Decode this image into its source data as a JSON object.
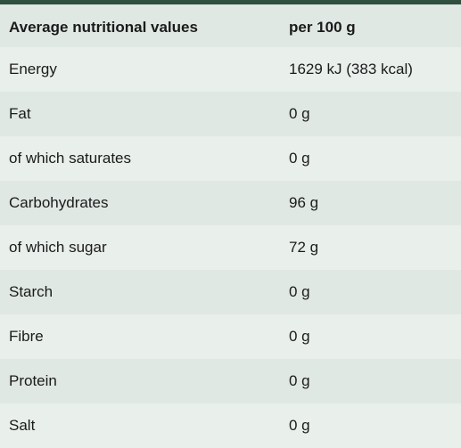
{
  "table": {
    "headers": [
      "Average nutritional values",
      "per 100 g"
    ],
    "rows": [
      [
        "Energy",
        "1629 kJ (383 kcal)"
      ],
      [
        "Fat",
        "0 g"
      ],
      [
        "of which saturates",
        "0 g"
      ],
      [
        "Carbohydrates",
        "96 g"
      ],
      [
        "of which sugar",
        "72 g"
      ],
      [
        "Starch",
        "0 g"
      ],
      [
        "Fibre",
        "0 g"
      ],
      [
        "Protein",
        "0 g"
      ],
      [
        "Salt",
        "0 g"
      ]
    ]
  },
  "colors": {
    "accent": "#2f4f3f",
    "row_light": "#e9efeb",
    "row_dark": "#e0e8e3"
  }
}
